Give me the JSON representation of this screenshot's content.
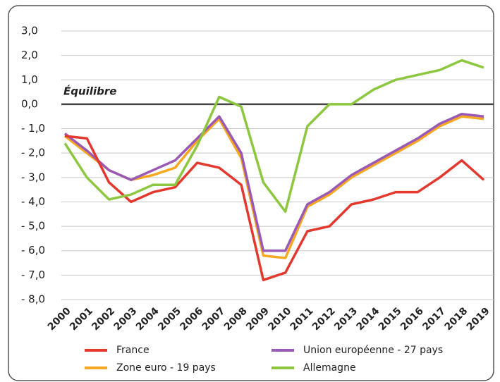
{
  "chart_data": {
    "type": "line",
    "annotation": "Équilibre",
    "categories": [
      "2000",
      "2001",
      "2002",
      "2003",
      "2004",
      "2005",
      "2006",
      "2007",
      "2008",
      "2009",
      "2010",
      "2011",
      "2012",
      "2013",
      "2014",
      "2015",
      "2016",
      "2017",
      "2018",
      "2019"
    ],
    "series": [
      {
        "name": "France",
        "color": "#e2382e",
        "values": [
          -1.3,
          -1.4,
          -3.2,
          -4.0,
          -3.6,
          -3.4,
          -2.4,
          -2.6,
          -3.3,
          -7.2,
          -6.9,
          -5.2,
          -5.0,
          -4.1,
          -3.9,
          -3.6,
          -3.6,
          -3.0,
          -2.3,
          -3.1
        ]
      },
      {
        "name": "Union européenne - 27 pays",
        "color": "#9b59b6",
        "values": [
          -1.2,
          -1.9,
          -2.7,
          -3.1,
          -2.7,
          -2.3,
          -1.4,
          -0.5,
          -2.0,
          -6.0,
          -6.0,
          -4.1,
          -3.6,
          -2.9,
          -2.4,
          -1.9,
          -1.4,
          -0.8,
          -0.4,
          -0.5
        ]
      },
      {
        "name": "Zone euro - 19 pays",
        "color": "#f7a823",
        "values": [
          -1.3,
          -2.0,
          -2.7,
          -3.1,
          -2.9,
          -2.6,
          -1.5,
          -0.6,
          -2.2,
          -6.2,
          -6.3,
          -4.2,
          -3.7,
          -3.0,
          -2.5,
          -2.0,
          -1.5,
          -0.9,
          -0.5,
          -0.6
        ]
      },
      {
        "name": "Allemagne",
        "color": "#8dc63f",
        "values": [
          -1.6,
          -3.0,
          -3.9,
          -3.7,
          -3.3,
          -3.3,
          -1.7,
          0.3,
          -0.1,
          -3.2,
          -4.4,
          -0.9,
          0.0,
          0.0,
          0.6,
          1.0,
          1.2,
          1.4,
          1.8,
          1.5
        ]
      }
    ],
    "ylim": [
      -8,
      3
    ],
    "yticks": [
      {
        "value": 3,
        "label": "3,0"
      },
      {
        "value": 2,
        "label": "2,0"
      },
      {
        "value": 1,
        "label": "1,0"
      },
      {
        "value": 0,
        "label": "0,0"
      },
      {
        "value": -1,
        "label": "- 1,0"
      },
      {
        "value": -2,
        "label": "- 2,0"
      },
      {
        "value": -3,
        "label": "- 3,0"
      },
      {
        "value": -4,
        "label": "- 4,0"
      },
      {
        "value": -5,
        "label": "- 5,0"
      },
      {
        "value": -6,
        "label": "- 6,0"
      },
      {
        "value": -7,
        "label": "- 7,0"
      },
      {
        "value": -8,
        "label": "- 8,0"
      }
    ],
    "grid": true
  }
}
